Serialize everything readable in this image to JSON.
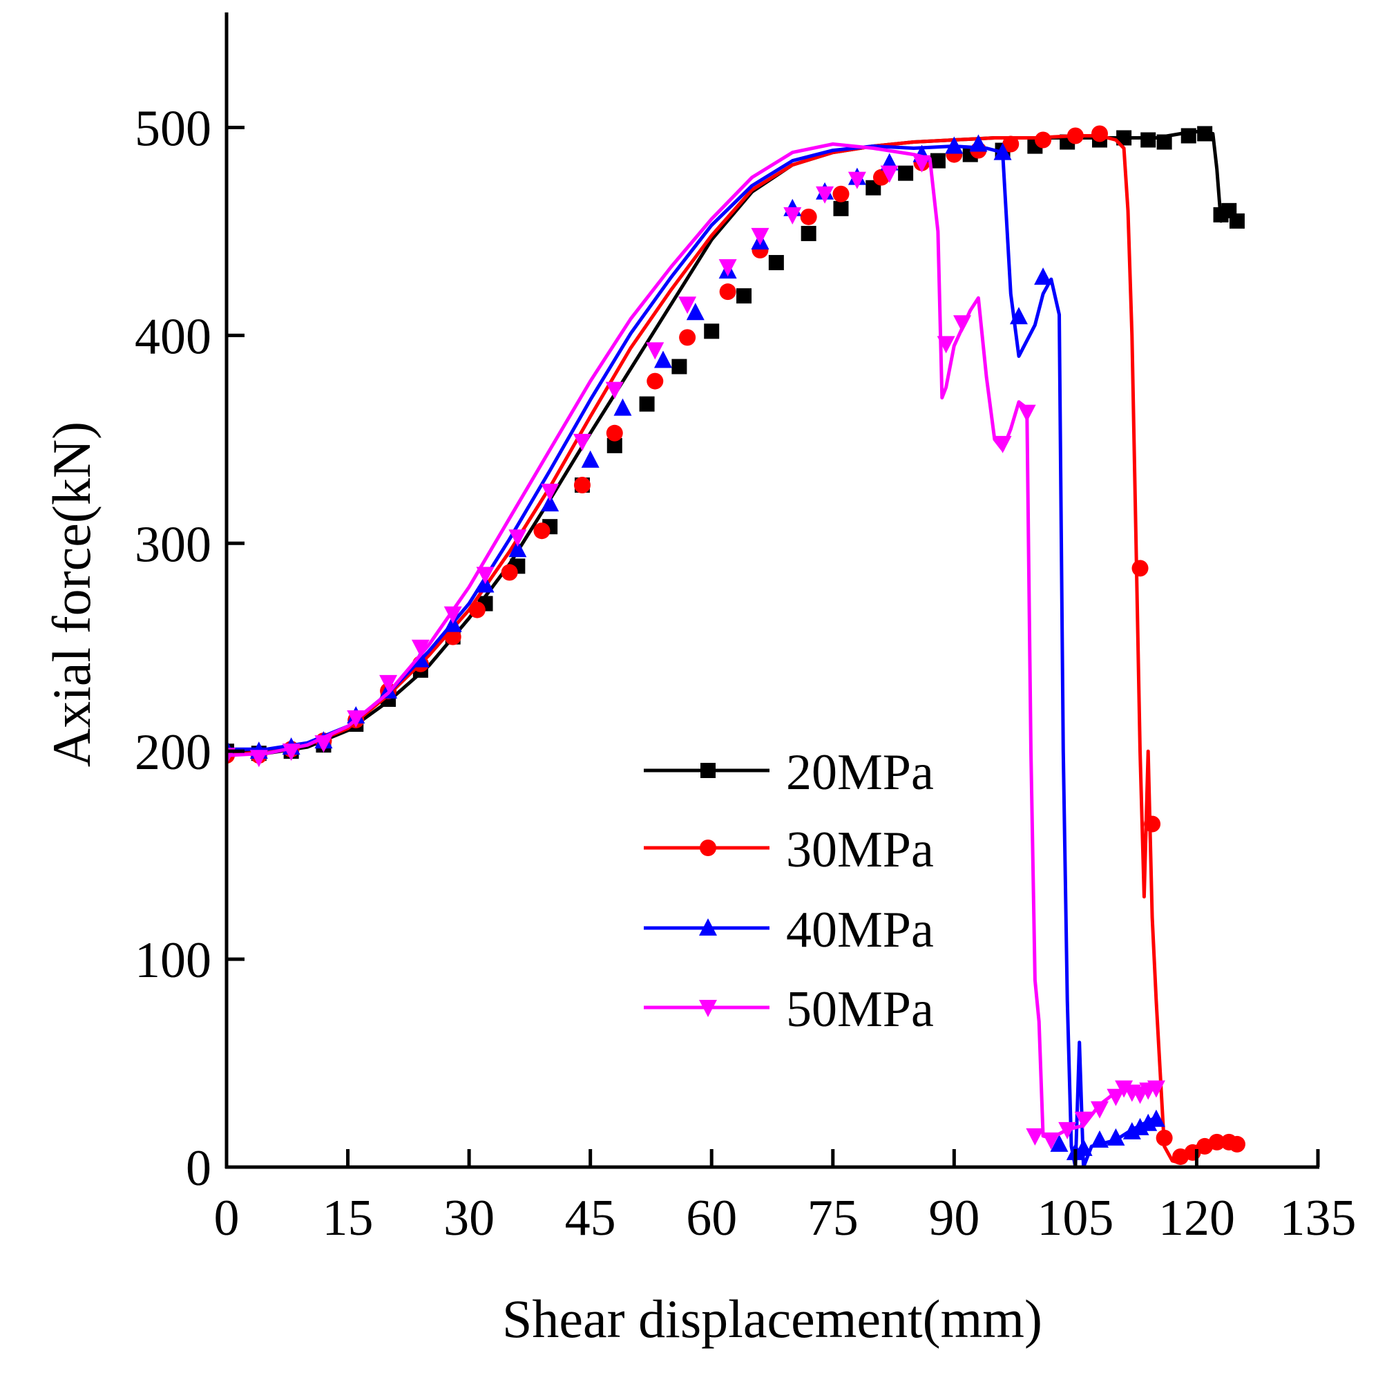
{
  "chart_data": {
    "type": "line",
    "title": "",
    "xlabel": "Shear displacement(mm)",
    "ylabel": "Axial force(kN)",
    "xlim": [
      0,
      135
    ],
    "ylim": [
      0,
      550
    ],
    "xticks": [
      0,
      15,
      30,
      45,
      60,
      75,
      90,
      105,
      120,
      135
    ],
    "yticks": [
      0,
      100,
      200,
      300,
      400,
      500
    ],
    "xtick_labels": [
      "0",
      "15",
      "30",
      "45",
      "60",
      "75",
      "90",
      "105",
      "120",
      "135"
    ],
    "ytick_labels": [
      "0",
      "100",
      "200",
      "300",
      "400",
      "500"
    ],
    "grid": false,
    "legend_position": "center-right",
    "series": [
      {
        "name": "20MPa",
        "color": "#000000",
        "marker": "square",
        "x": [
          0,
          5,
          10,
          15,
          20,
          25,
          30,
          35,
          40,
          45,
          50,
          55,
          60,
          65,
          70,
          75,
          80,
          85,
          90,
          95,
          100,
          105,
          110,
          112,
          115,
          118,
          120,
          122,
          122.5,
          123,
          124,
          125
        ],
        "y": [
          200,
          199,
          202,
          210,
          224,
          241,
          264,
          290,
          321,
          353,
          384,
          415,
          446,
          469,
          482,
          488,
          491,
          493,
          494,
          495,
          495,
          495,
          495,
          495,
          495,
          497,
          498,
          497,
          480,
          455,
          458,
          456
        ],
        "marker_x": [
          0,
          4,
          8,
          12,
          16,
          20,
          24,
          28,
          32,
          36,
          40,
          44,
          48,
          52,
          56,
          60,
          64,
          68,
          72,
          76,
          80,
          84,
          88,
          92,
          96,
          100,
          104,
          108,
          111,
          114,
          116,
          119,
          121,
          123,
          124,
          125
        ],
        "marker_y": [
          200,
          199,
          200,
          203,
          213,
          225,
          239,
          255,
          271,
          289,
          308,
          328,
          347,
          367,
          385,
          402,
          419,
          435,
          449,
          461,
          471,
          478,
          484,
          487,
          489,
          491,
          493,
          494,
          495,
          494,
          493,
          496,
          497,
          458,
          460,
          455
        ]
      },
      {
        "name": "30MPa",
        "color": "#ff0000",
        "marker": "circle",
        "x": [
          0,
          5,
          10,
          15,
          20,
          25,
          30,
          35,
          40,
          45,
          50,
          55,
          60,
          65,
          70,
          75,
          80,
          85,
          90,
          95,
          100,
          105,
          108,
          110,
          111,
          111.5,
          112,
          112.5,
          113,
          113.5,
          114,
          114.5,
          115,
          116,
          117,
          118,
          120,
          122,
          124,
          125
        ],
        "y": [
          198,
          200,
          203,
          211,
          227,
          246,
          268,
          296,
          327,
          361,
          394,
          422,
          448,
          470,
          482,
          488,
          491,
          493,
          494,
          495,
          495,
          496,
          496,
          494,
          490,
          460,
          400,
          300,
          200,
          130,
          200,
          120,
          80,
          10,
          3,
          2,
          10,
          12,
          12,
          11
        ],
        "marker_x": [
          0,
          4,
          8,
          12,
          16,
          20,
          24,
          28,
          31,
          35,
          39,
          44,
          48,
          53,
          57,
          62,
          66,
          72,
          76,
          81,
          86,
          90,
          93,
          97,
          101,
          105,
          108,
          113,
          114.5,
          116,
          118,
          119.5,
          121,
          122.5,
          124,
          125
        ],
        "marker_y": [
          198,
          198,
          201,
          205,
          215,
          229,
          242,
          255,
          268,
          286,
          306,
          328,
          353,
          378,
          399,
          421,
          441,
          457,
          468,
          476,
          483,
          487,
          489,
          492,
          494,
          496,
          497,
          288,
          165,
          14,
          5,
          7,
          10,
          12,
          12,
          11
        ]
      },
      {
        "name": "40MPa",
        "color": "#0000ff",
        "marker": "triangle-up",
        "x": [
          0,
          5,
          10,
          15,
          20,
          25,
          30,
          35,
          40,
          45,
          50,
          55,
          60,
          65,
          70,
          75,
          80,
          85,
          90,
          94,
          96,
          97,
          98,
          100,
          101,
          102,
          103,
          103.5,
          104,
          104.5,
          105,
          105.5,
          106,
          107,
          110,
          112,
          115
        ],
        "y": [
          201,
          201,
          204,
          212,
          228,
          248,
          271,
          302,
          335,
          369,
          401,
          428,
          453,
          472,
          484,
          489,
          491,
          490,
          491,
          490,
          488,
          420,
          390,
          405,
          420,
          427,
          410,
          200,
          80,
          10,
          0,
          60,
          0,
          10,
          13,
          18,
          24
        ],
        "marker_x": [
          0,
          4,
          8,
          12,
          16,
          20,
          24,
          28,
          32,
          36,
          40,
          45,
          49,
          54,
          58,
          62,
          66,
          70,
          74,
          78,
          82,
          86,
          90,
          93,
          96,
          98,
          101,
          103,
          105,
          106,
          108,
          110,
          112,
          113,
          114,
          115
        ],
        "marker_y": [
          201,
          200,
          202,
          205,
          217,
          229,
          244,
          261,
          280,
          297,
          319,
          340,
          365,
          388,
          411,
          431,
          445,
          461,
          469,
          476,
          483,
          487,
          491,
          492,
          488,
          409,
          428,
          11,
          7,
          9,
          13,
          14,
          17,
          19,
          21,
          23
        ]
      },
      {
        "name": "50MPa",
        "color": "#ff00ff",
        "marker": "triangle-down",
        "x": [
          0,
          5,
          10,
          15,
          20,
          25,
          30,
          35,
          40,
          45,
          50,
          55,
          60,
          65,
          70,
          75,
          80,
          85,
          87,
          88,
          88.5,
          89,
          90,
          92,
          93,
          94,
          95,
          96,
          97,
          98,
          99,
          99.5,
          100,
          100.5,
          101,
          102,
          104,
          106,
          108,
          110,
          112,
          115
        ],
        "y": [
          198,
          199,
          203,
          212,
          228,
          251,
          279,
          312,
          345,
          378,
          408,
          433,
          456,
          476,
          488,
          492,
          490,
          487,
          485,
          450,
          370,
          375,
          395,
          412,
          418,
          380,
          350,
          345,
          355,
          368,
          365,
          200,
          90,
          70,
          15,
          14,
          18,
          20,
          30,
          36,
          38,
          38
        ],
        "marker_x": [
          0,
          4,
          8,
          12,
          16,
          20,
          24,
          28,
          32,
          36,
          40,
          44,
          48,
          53,
          57,
          62,
          66,
          70,
          74,
          78,
          82,
          86,
          89,
          91,
          96,
          99,
          100,
          102,
          104,
          106,
          108,
          110,
          111,
          112,
          113,
          114,
          115
        ],
        "marker_y": [
          198,
          197,
          200,
          204,
          216,
          233,
          250,
          266,
          285,
          303,
          325,
          349,
          374,
          393,
          415,
          433,
          448,
          458,
          468,
          475,
          478,
          483,
          396,
          406,
          348,
          363,
          15,
          13,
          18,
          23,
          28,
          34,
          38,
          36,
          35,
          37,
          38
        ]
      }
    ]
  }
}
